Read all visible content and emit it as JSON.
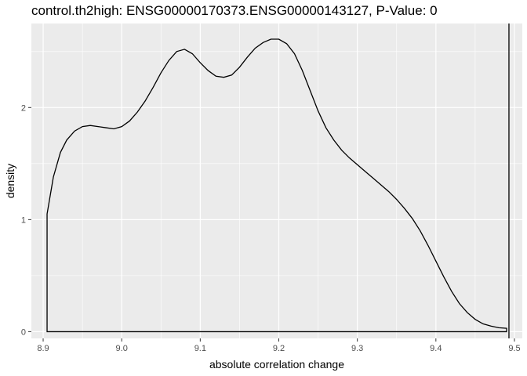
{
  "chart_data": {
    "type": "area",
    "title": "control.th2high: ENSG00000170373.ENSG00000143127, P-Value: 0",
    "xlabel": "absolute correlation change",
    "ylabel": "density",
    "xlim": [
      8.885,
      9.51
    ],
    "ylim": [
      -0.06,
      2.75
    ],
    "x_ticks": [
      8.9,
      9.0,
      9.1,
      9.2,
      9.3,
      9.4,
      9.5
    ],
    "x_tick_labels": [
      "8.9",
      "9.0",
      "9.1",
      "9.2",
      "9.3",
      "9.4",
      "9.5"
    ],
    "y_ticks": [
      0,
      1,
      2
    ],
    "y_tick_labels": [
      "0",
      "1",
      "2"
    ],
    "grid": true,
    "panel_background": "#ebebeb",
    "density_curve": {
      "x": [
        8.905,
        8.913,
        8.922,
        8.93,
        8.94,
        8.95,
        8.96,
        8.97,
        8.98,
        8.99,
        9.0,
        9.01,
        9.02,
        9.03,
        9.04,
        9.05,
        9.06,
        9.07,
        9.08,
        9.09,
        9.1,
        9.11,
        9.12,
        9.13,
        9.14,
        9.15,
        9.16,
        9.17,
        9.18,
        9.19,
        9.2,
        9.21,
        9.22,
        9.23,
        9.24,
        9.25,
        9.26,
        9.27,
        9.28,
        9.29,
        9.3,
        9.31,
        9.32,
        9.33,
        9.34,
        9.35,
        9.36,
        9.37,
        9.38,
        9.39,
        9.4,
        9.41,
        9.42,
        9.43,
        9.44,
        9.45,
        9.46,
        9.47,
        9.48,
        9.49
      ],
      "y": [
        1.05,
        1.38,
        1.6,
        1.71,
        1.79,
        1.83,
        1.84,
        1.83,
        1.82,
        1.81,
        1.83,
        1.88,
        1.96,
        2.06,
        2.18,
        2.31,
        2.42,
        2.5,
        2.52,
        2.48,
        2.4,
        2.33,
        2.28,
        2.27,
        2.29,
        2.36,
        2.45,
        2.53,
        2.58,
        2.61,
        2.61,
        2.57,
        2.48,
        2.33,
        2.15,
        1.97,
        1.82,
        1.71,
        1.62,
        1.55,
        1.49,
        1.43,
        1.37,
        1.31,
        1.25,
        1.18,
        1.1,
        1.01,
        0.9,
        0.77,
        0.63,
        0.49,
        0.36,
        0.25,
        0.17,
        0.11,
        0.07,
        0.05,
        0.035,
        0.03
      ]
    },
    "vertical_line_x": 9.493
  }
}
